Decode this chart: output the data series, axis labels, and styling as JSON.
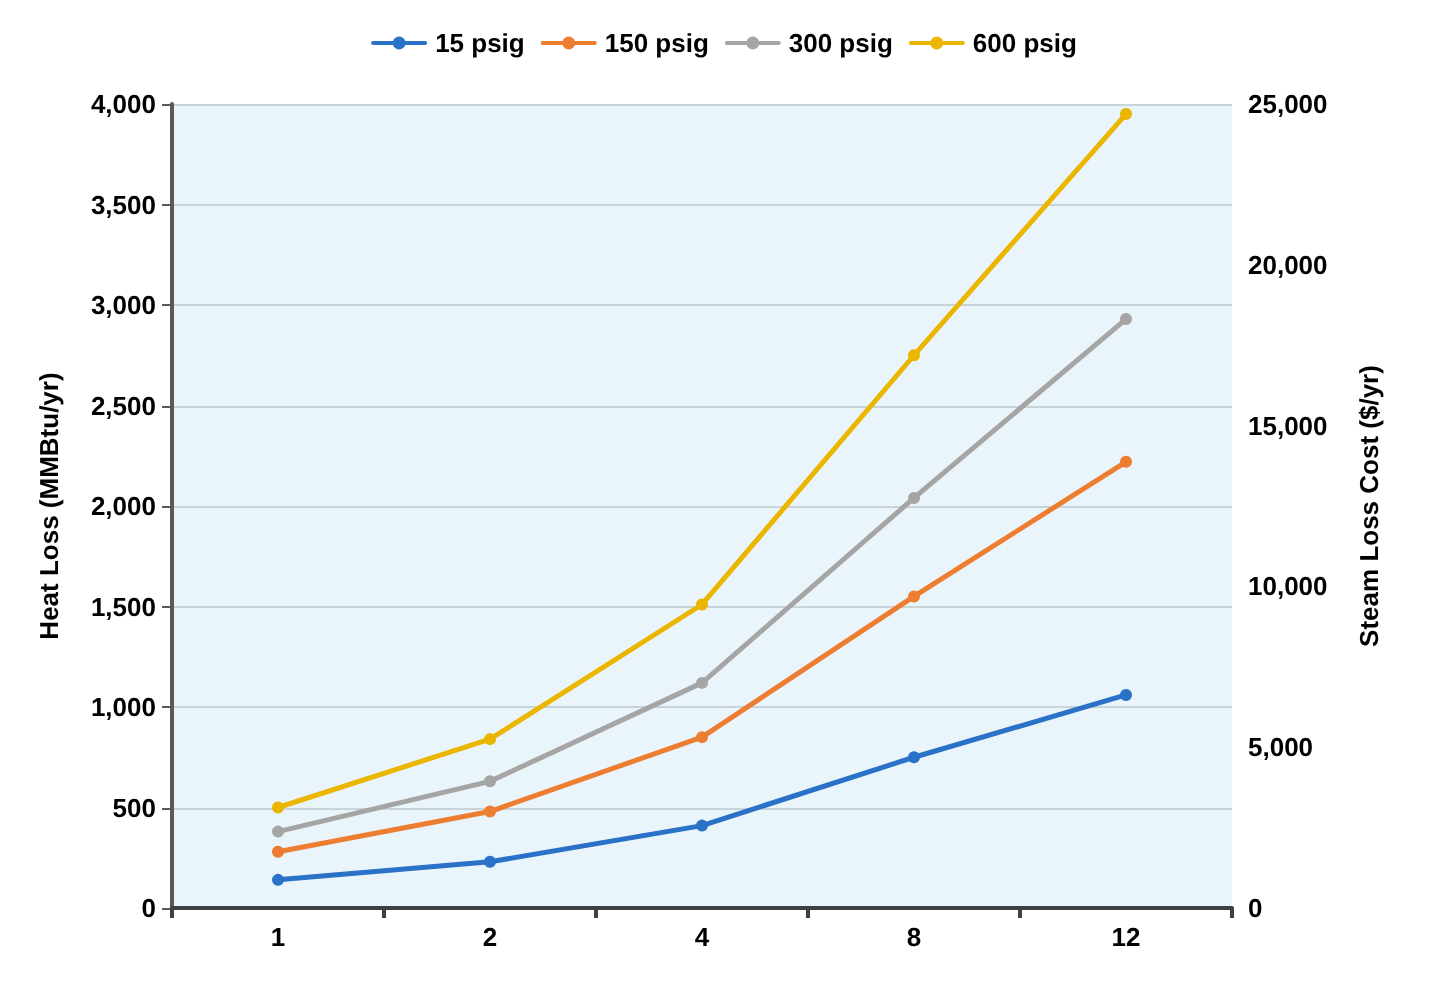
{
  "chart_data": {
    "type": "line",
    "categories": [
      "1",
      "2",
      "4",
      "8",
      "12"
    ],
    "ylabel": "Heat Loss (MMBtu/yr)",
    "y2label": "Steam Loss Cost ($/yr)",
    "ylim": [
      0,
      4000
    ],
    "yticks": [
      0,
      500,
      {
        "value": 1000,
        "label": "1,000"
      },
      {
        "value": 1500,
        "label": "1,500"
      },
      {
        "value": 2000,
        "label": "2,000"
      },
      {
        "value": 2500,
        "label": "2,500"
      },
      {
        "value": 3000,
        "label": "3,000"
      },
      {
        "value": 3500,
        "label": "3,500"
      },
      {
        "value": 4000,
        "label": "4,000"
      }
    ],
    "y2lim": [
      0,
      25000
    ],
    "y2ticks": [
      0,
      {
        "value": 5000,
        "label": "5,000"
      },
      {
        "value": 10000,
        "label": "10,000"
      },
      {
        "value": 15000,
        "label": "15,000"
      },
      {
        "value": 20000,
        "label": "20,000"
      },
      {
        "value": 25000,
        "label": "25,000"
      }
    ],
    "grid": "y",
    "legend": "top",
    "marker": "circle",
    "line_style": "solid",
    "series": [
      {
        "name": "15 psig",
        "color": "#2a72c8",
        "values": [
          140,
          230,
          410,
          750,
          1060
        ]
      },
      {
        "name": "150 psig",
        "color": "#ed7d31",
        "values": [
          280,
          480,
          850,
          1550,
          2220
        ]
      },
      {
        "name": "300 psig",
        "color": "#a5a5a5",
        "values": [
          380,
          630,
          1120,
          2040,
          2930
        ]
      },
      {
        "name": "600 psig",
        "color": "#eab600",
        "values": [
          500,
          840,
          1510,
          2750,
          3950
        ]
      }
    ]
  }
}
